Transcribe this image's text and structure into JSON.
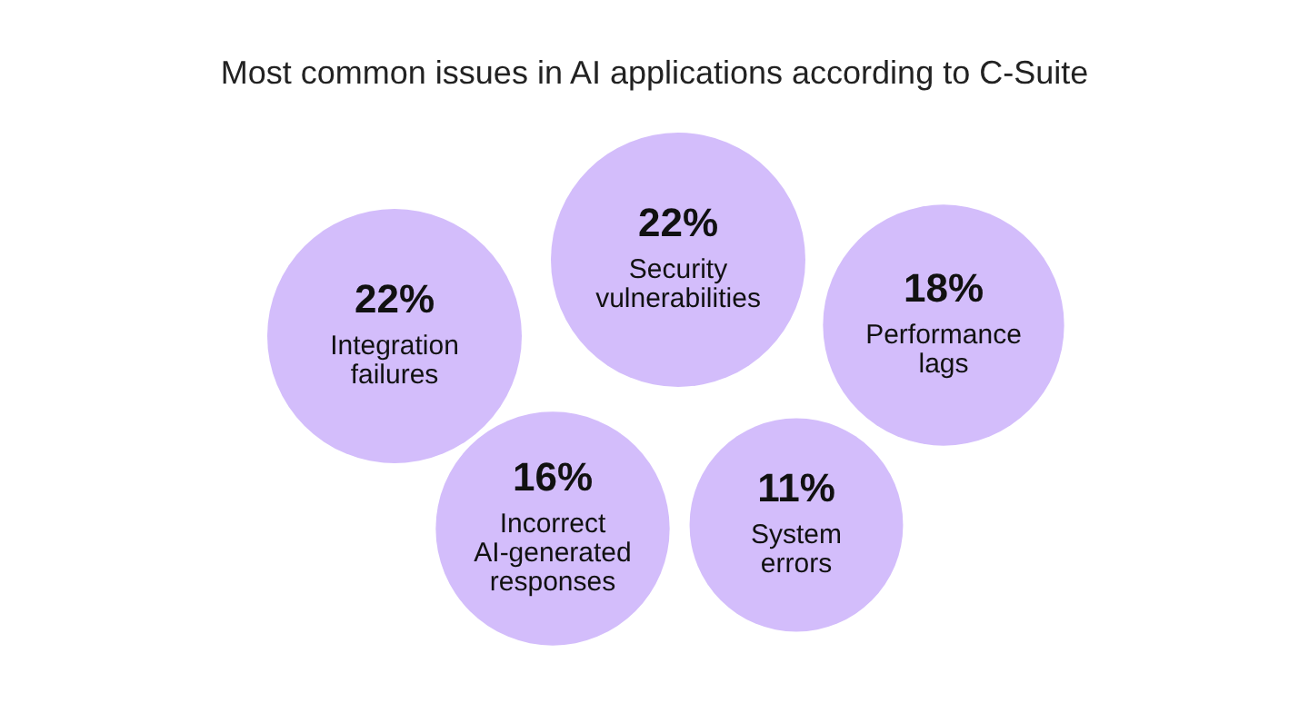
{
  "chart_data": {
    "type": "other",
    "title": "Most common issues in AI applications according to C-Suite",
    "categories": [
      "Integration failures",
      "Security vulnerabilities",
      "Performance lags",
      "Incorrect AI-generated responses",
      "System errors"
    ],
    "values": [
      22,
      22,
      18,
      16,
      11
    ],
    "value_labels": [
      "22%",
      "22%",
      "18%",
      "16%",
      "11%"
    ],
    "color": "#d3bdfb"
  }
}
